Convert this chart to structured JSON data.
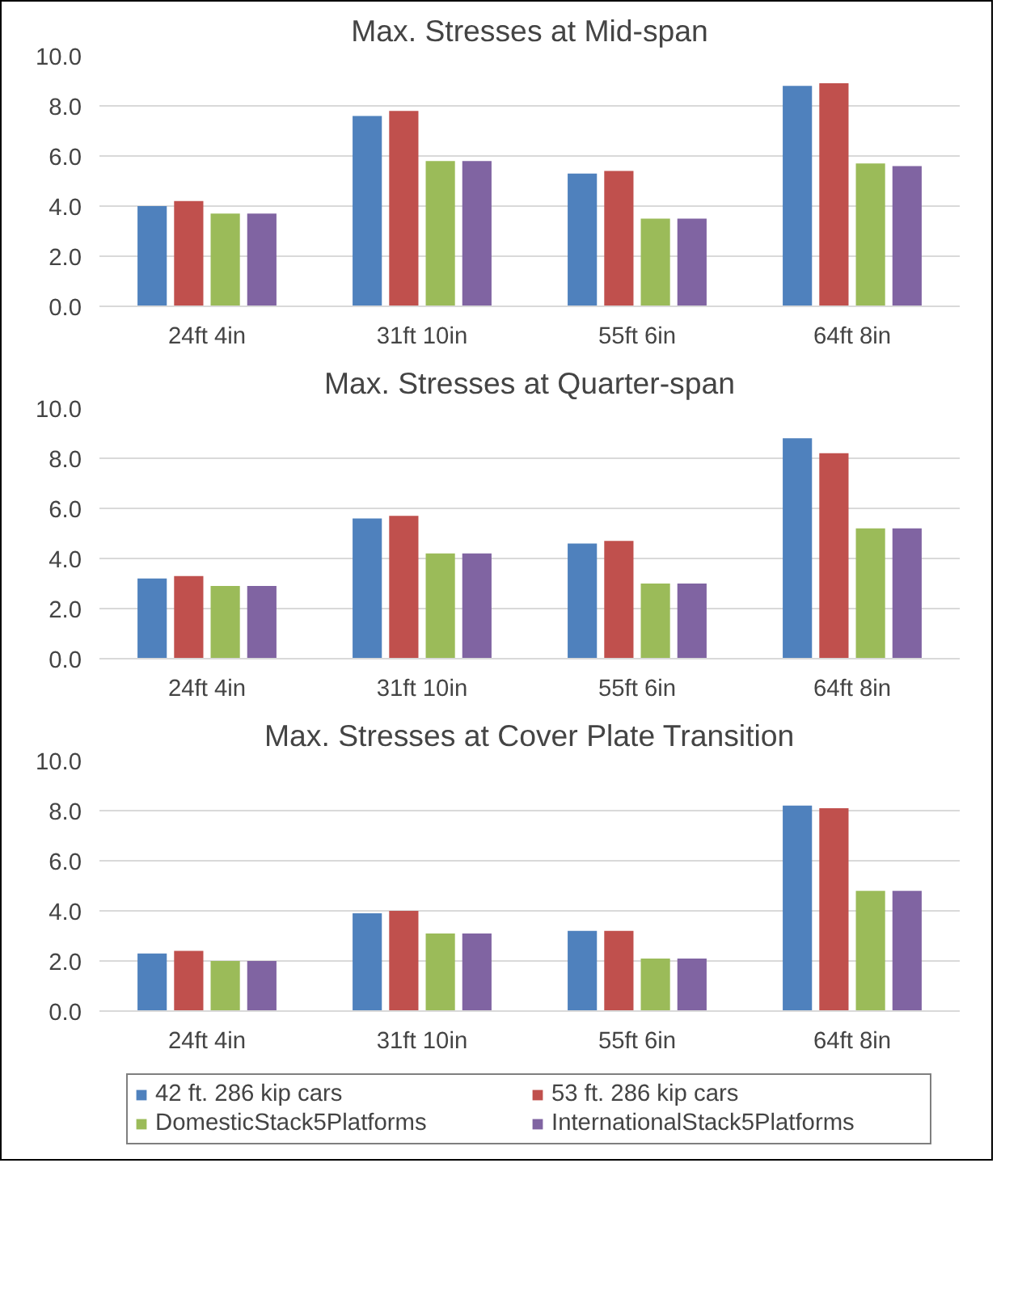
{
  "chart_data": [
    {
      "type": "bar",
      "title": "Max. Stresses at Mid-span",
      "categories": [
        "24ft 4in",
        "31ft 10in",
        "55ft 6in",
        "64ft 8in"
      ],
      "ylim": [
        0,
        10
      ],
      "yticks": [
        {
          "value": 0,
          "label": "0.0"
        },
        {
          "value": 2,
          "label": "2.0"
        },
        {
          "value": 4,
          "label": "4.0"
        },
        {
          "value": 6,
          "label": "6.0"
        },
        {
          "value": 8,
          "label": "8.0"
        },
        {
          "value": 10,
          "label": "10.0"
        }
      ],
      "grid": "y",
      "legend": false,
      "series": [
        {
          "color": "#4f81bd",
          "values": [
            4.0,
            7.6,
            5.3,
            8.8
          ]
        },
        {
          "color": "#c0504d",
          "values": [
            4.2,
            7.8,
            5.4,
            8.9
          ]
        },
        {
          "color": "#9bbb59",
          "values": [
            3.7,
            5.8,
            3.5,
            5.7
          ]
        },
        {
          "color": "#8064a2",
          "values": [
            3.7,
            5.8,
            3.5,
            5.6
          ]
        }
      ]
    },
    {
      "type": "bar",
      "title": "Max. Stresses at Quarter-span",
      "categories": [
        "24ft 4in",
        "31ft 10in",
        "55ft 6in",
        "64ft 8in"
      ],
      "ylim": [
        0,
        10
      ],
      "yticks": [
        {
          "value": 0,
          "label": "0.0"
        },
        {
          "value": 2,
          "label": "2.0"
        },
        {
          "value": 4,
          "label": "4.0"
        },
        {
          "value": 6,
          "label": "6.0"
        },
        {
          "value": 8,
          "label": "8.0"
        },
        {
          "value": 10,
          "label": "10.0"
        }
      ],
      "grid": "y",
      "legend": false,
      "series": [
        {
          "color": "#4f81bd",
          "values": [
            3.2,
            5.6,
            4.6,
            8.8
          ]
        },
        {
          "color": "#c0504d",
          "values": [
            3.3,
            5.7,
            4.7,
            8.2
          ]
        },
        {
          "color": "#9bbb59",
          "values": [
            2.9,
            4.2,
            3.0,
            5.2
          ]
        },
        {
          "color": "#8064a2",
          "values": [
            2.9,
            4.2,
            3.0,
            5.2
          ]
        }
      ]
    },
    {
      "type": "bar",
      "title": "Max. Stresses at Cover Plate Transition",
      "categories": [
        "24ft 4in",
        "31ft 10in",
        "55ft 6in",
        "64ft 8in"
      ],
      "ylim": [
        0,
        10
      ],
      "yticks": [
        {
          "value": 0,
          "label": "0.0"
        },
        {
          "value": 2,
          "label": "2.0"
        },
        {
          "value": 4,
          "label": "4.0"
        },
        {
          "value": 6,
          "label": "6.0"
        },
        {
          "value": 8,
          "label": "8.0"
        },
        {
          "value": 10,
          "label": "10.0"
        }
      ],
      "grid": "y",
      "legend": "bottom",
      "series": [
        {
          "name": "42 ft. 286 kip cars",
          "color": "#4f81bd",
          "values": [
            2.3,
            3.9,
            3.2,
            8.2
          ]
        },
        {
          "name": "53 ft. 286 kip cars",
          "color": "#c0504d",
          "values": [
            2.4,
            4.0,
            3.2,
            8.1
          ]
        },
        {
          "name": "DomesticStack5Platforms",
          "color": "#9bbb59",
          "values": [
            2.0,
            3.1,
            2.1,
            4.8
          ]
        },
        {
          "name": "InternationalStack5Platforms",
          "color": "#8064a2",
          "values": [
            2.0,
            3.1,
            2.1,
            4.8
          ]
        }
      ]
    }
  ]
}
